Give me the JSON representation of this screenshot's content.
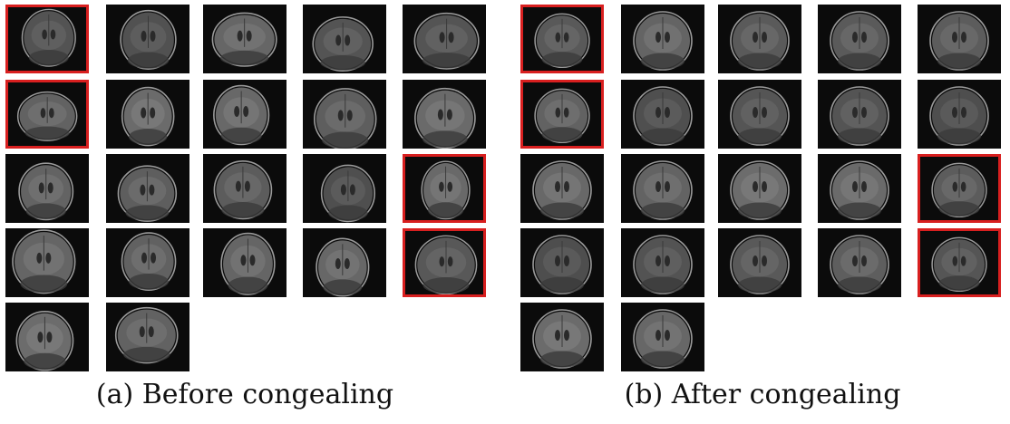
{
  "captions": {
    "a": "(a) Before congealing",
    "b": "(b) After congealing"
  },
  "colors": {
    "highlight": "#d81f1f",
    "background": "#0b0b0b"
  },
  "panels": [
    {
      "id": "a",
      "rows": [
        [
          true,
          false,
          false,
          false,
          false
        ],
        [
          true,
          false,
          false,
          false,
          false
        ],
        [
          false,
          false,
          false,
          false,
          true
        ],
        [
          false,
          false,
          false,
          false,
          true
        ],
        [
          false,
          false
        ]
      ]
    },
    {
      "id": "b",
      "rows": [
        [
          true,
          false,
          false,
          false,
          false
        ],
        [
          true,
          false,
          false,
          false,
          false
        ],
        [
          false,
          false,
          false,
          false,
          true
        ],
        [
          false,
          false,
          false,
          false,
          true
        ],
        [
          false,
          false
        ]
      ]
    }
  ]
}
